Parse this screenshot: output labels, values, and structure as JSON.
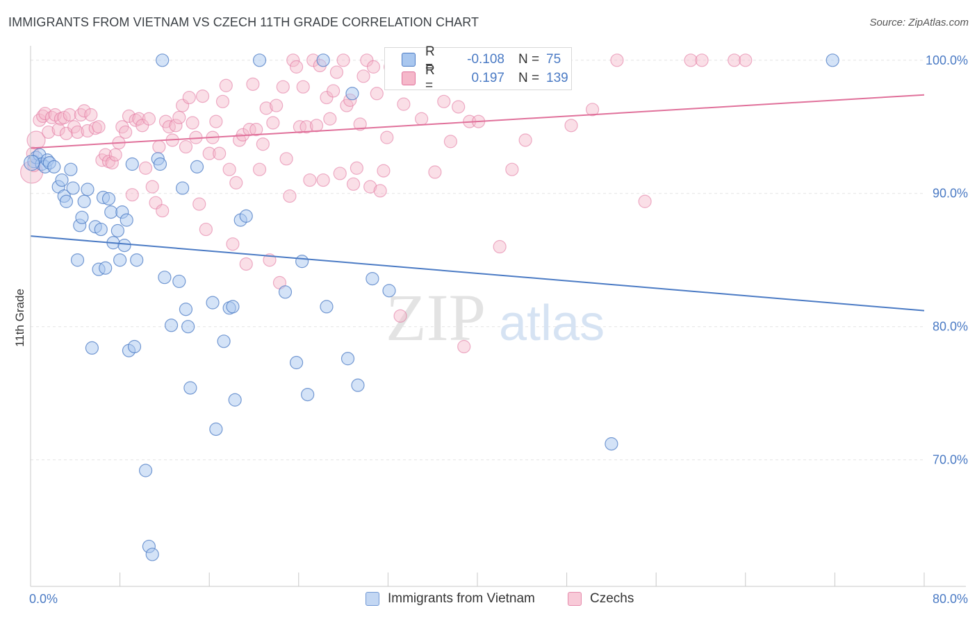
{
  "title": "IMMIGRANTS FROM VIETNAM VS CZECH 11TH GRADE CORRELATION CHART",
  "source": "Source: ZipAtlas.com",
  "watermark": {
    "zip": "ZIP",
    "atlas": "atlas"
  },
  "legend": {
    "r_label": "R =",
    "n_label": "N =",
    "series": [
      {
        "r": "-0.108",
        "n": "75"
      },
      {
        "r": "0.197",
        "n": "139"
      }
    ]
  },
  "bottom_legend": [
    "Immigrants from Vietnam",
    "Czechs"
  ],
  "chart_data": {
    "type": "scatter",
    "ylabel": "11th Grade",
    "x_tick_labels": [
      "0.0%",
      "80.0%"
    ],
    "y_tick_labels": [
      "100.0%",
      "90.0%",
      "80.0%",
      "70.0%"
    ],
    "y_ticks": [
      100,
      90,
      80,
      70
    ],
    "xlim": [
      0,
      80
    ],
    "ylim": [
      60.5,
      101.5
    ],
    "colors": {
      "blue": "#4a7ac4",
      "pink": "#e0709a",
      "blue_fill": "#a9c7ef",
      "pink_fill": "#f5b8ca"
    },
    "series": [
      {
        "name": "Immigrants from Vietnam",
        "color": "#4a7ac4",
        "trend": {
          "x": [
            0,
            80
          ],
          "y": [
            86.8,
            81.2
          ]
        },
        "points": [
          [
            0.3,
            92.4
          ],
          [
            0.5,
            92.7
          ],
          [
            0.8,
            92.9
          ],
          [
            1.0,
            92.2
          ],
          [
            1.3,
            92.0
          ],
          [
            1.5,
            92.5
          ],
          [
            1.7,
            92.3
          ],
          [
            2.1,
            92.0
          ],
          [
            2.5,
            90.5
          ],
          [
            2.8,
            91.0
          ],
          [
            3.0,
            89.8
          ],
          [
            3.2,
            89.4
          ],
          [
            3.6,
            91.8
          ],
          [
            3.8,
            90.4
          ],
          [
            4.2,
            85.0
          ],
          [
            4.4,
            87.6
          ],
          [
            4.6,
            88.2
          ],
          [
            4.8,
            89.4
          ],
          [
            5.1,
            90.3
          ],
          [
            5.5,
            78.4
          ],
          [
            5.8,
            87.5
          ],
          [
            6.1,
            84.3
          ],
          [
            6.3,
            87.3
          ],
          [
            6.5,
            89.7
          ],
          [
            6.7,
            84.4
          ],
          [
            7.0,
            89.6
          ],
          [
            7.2,
            88.6
          ],
          [
            7.4,
            86.3
          ],
          [
            7.8,
            87.2
          ],
          [
            8.0,
            85.0
          ],
          [
            8.2,
            88.6
          ],
          [
            8.4,
            86.1
          ],
          [
            8.6,
            88.0
          ],
          [
            8.8,
            78.2
          ],
          [
            9.1,
            92.2
          ],
          [
            9.3,
            78.5
          ],
          [
            9.5,
            85.0
          ],
          [
            10.3,
            69.2
          ],
          [
            10.6,
            63.5
          ],
          [
            10.9,
            62.9
          ],
          [
            11.4,
            92.6
          ],
          [
            11.6,
            92.2
          ],
          [
            11.8,
            100.0
          ],
          [
            12.0,
            83.7
          ],
          [
            12.6,
            80.1
          ],
          [
            13.3,
            83.4
          ],
          [
            13.6,
            90.4
          ],
          [
            13.9,
            81.3
          ],
          [
            14.1,
            80.0
          ],
          [
            14.3,
            75.4
          ],
          [
            14.9,
            92.0
          ],
          [
            16.3,
            81.8
          ],
          [
            16.6,
            72.3
          ],
          [
            17.3,
            78.9
          ],
          [
            17.8,
            81.4
          ],
          [
            18.1,
            81.5
          ],
          [
            18.3,
            74.5
          ],
          [
            18.8,
            88.0
          ],
          [
            19.3,
            88.3
          ],
          [
            20.5,
            100.0
          ],
          [
            22.8,
            82.6
          ],
          [
            23.8,
            77.3
          ],
          [
            24.3,
            84.9
          ],
          [
            24.8,
            74.9
          ],
          [
            26.2,
            100.0
          ],
          [
            26.5,
            81.5
          ],
          [
            28.4,
            77.6
          ],
          [
            28.8,
            97.5
          ],
          [
            29.3,
            75.6
          ],
          [
            30.6,
            83.6
          ],
          [
            32.1,
            82.7
          ],
          [
            43.6,
            100.0
          ],
          [
            52.0,
            71.2
          ],
          [
            71.8,
            100.0
          ],
          [
            0.1,
            92.3
          ]
        ]
      },
      {
        "name": "Czechs",
        "color": "#e0709a",
        "trend": {
          "x": [
            0,
            80
          ],
          "y": [
            93.4,
            97.4
          ]
        },
        "points": [
          [
            0.1,
            91.6
          ],
          [
            0.3,
            92.1
          ],
          [
            0.5,
            94.0
          ],
          [
            0.8,
            95.5
          ],
          [
            1.1,
            95.8
          ],
          [
            1.3,
            96.0
          ],
          [
            1.6,
            94.6
          ],
          [
            1.9,
            95.7
          ],
          [
            2.2,
            95.9
          ],
          [
            2.5,
            94.8
          ],
          [
            2.7,
            95.6
          ],
          [
            3.0,
            95.7
          ],
          [
            3.2,
            94.5
          ],
          [
            3.5,
            95.9
          ],
          [
            3.9,
            95.0
          ],
          [
            4.2,
            94.6
          ],
          [
            4.5,
            95.9
          ],
          [
            4.8,
            96.2
          ],
          [
            5.1,
            94.7
          ],
          [
            5.4,
            95.9
          ],
          [
            5.8,
            94.9
          ],
          [
            6.1,
            95.0
          ],
          [
            6.4,
            92.5
          ],
          [
            6.7,
            92.9
          ],
          [
            7.0,
            92.4
          ],
          [
            7.3,
            92.3
          ],
          [
            7.6,
            92.9
          ],
          [
            7.9,
            93.8
          ],
          [
            8.2,
            95.0
          ],
          [
            8.5,
            94.6
          ],
          [
            8.8,
            95.8
          ],
          [
            9.1,
            89.9
          ],
          [
            9.4,
            95.5
          ],
          [
            9.7,
            95.6
          ],
          [
            10.0,
            95.1
          ],
          [
            10.3,
            91.9
          ],
          [
            10.6,
            95.6
          ],
          [
            10.9,
            90.5
          ],
          [
            11.2,
            89.3
          ],
          [
            11.5,
            93.5
          ],
          [
            11.8,
            88.7
          ],
          [
            12.1,
            95.4
          ],
          [
            12.4,
            95.0
          ],
          [
            12.7,
            94.0
          ],
          [
            13.0,
            95.1
          ],
          [
            13.3,
            95.7
          ],
          [
            13.6,
            96.6
          ],
          [
            13.9,
            93.5
          ],
          [
            14.2,
            97.2
          ],
          [
            14.5,
            95.3
          ],
          [
            14.8,
            94.2
          ],
          [
            15.1,
            89.2
          ],
          [
            15.4,
            97.3
          ],
          [
            15.7,
            87.3
          ],
          [
            16.0,
            93.0
          ],
          [
            16.3,
            94.2
          ],
          [
            16.6,
            95.4
          ],
          [
            16.9,
            93.0
          ],
          [
            17.2,
            96.9
          ],
          [
            17.5,
            98.1
          ],
          [
            17.8,
            91.8
          ],
          [
            18.1,
            86.2
          ],
          [
            18.4,
            90.8
          ],
          [
            18.7,
            94.0
          ],
          [
            19.0,
            94.4
          ],
          [
            19.3,
            84.7
          ],
          [
            19.6,
            94.8
          ],
          [
            19.9,
            98.2
          ],
          [
            20.2,
            94.8
          ],
          [
            20.5,
            91.8
          ],
          [
            20.8,
            93.7
          ],
          [
            21.1,
            96.4
          ],
          [
            21.4,
            85.0
          ],
          [
            21.7,
            95.3
          ],
          [
            22.0,
            96.6
          ],
          [
            22.3,
            83.3
          ],
          [
            22.6,
            98.0
          ],
          [
            22.9,
            92.6
          ],
          [
            23.2,
            89.8
          ],
          [
            23.5,
            100.0
          ],
          [
            23.8,
            99.5
          ],
          [
            24.1,
            95.0
          ],
          [
            24.4,
            98.0
          ],
          [
            24.7,
            95.0
          ],
          [
            25.0,
            91.0
          ],
          [
            25.3,
            100.0
          ],
          [
            25.6,
            95.1
          ],
          [
            25.9,
            99.6
          ],
          [
            26.2,
            91.0
          ],
          [
            26.5,
            97.2
          ],
          [
            26.8,
            95.6
          ],
          [
            27.1,
            97.7
          ],
          [
            27.4,
            99.1
          ],
          [
            27.7,
            91.5
          ],
          [
            28.0,
            100.0
          ],
          [
            28.3,
            96.6
          ],
          [
            28.6,
            97.0
          ],
          [
            28.9,
            90.7
          ],
          [
            29.2,
            91.9
          ],
          [
            29.5,
            95.2
          ],
          [
            29.8,
            98.8
          ],
          [
            30.1,
            100.0
          ],
          [
            30.4,
            90.5
          ],
          [
            30.7,
            99.5
          ],
          [
            31.0,
            97.5
          ],
          [
            31.3,
            90.2
          ],
          [
            31.6,
            91.7
          ],
          [
            31.9,
            94.2
          ],
          [
            32.2,
            99.5
          ],
          [
            32.5,
            100.0
          ],
          [
            32.8,
            100.0
          ],
          [
            33.1,
            80.8
          ],
          [
            33.4,
            96.7
          ],
          [
            35.0,
            95.6
          ],
          [
            35.5,
            100.0
          ],
          [
            36.2,
            91.6
          ],
          [
            37.0,
            96.9
          ],
          [
            37.6,
            93.9
          ],
          [
            38.3,
            96.5
          ],
          [
            38.8,
            78.5
          ],
          [
            39.3,
            95.4
          ],
          [
            40.1,
            95.4
          ],
          [
            41.0,
            100.0
          ],
          [
            42.0,
            86.0
          ],
          [
            42.6,
            99.2
          ],
          [
            43.1,
            91.8
          ],
          [
            44.3,
            94.0
          ],
          [
            45.0,
            99.3
          ],
          [
            46.0,
            100.0
          ],
          [
            48.4,
            95.1
          ],
          [
            50.3,
            96.3
          ],
          [
            52.5,
            100.0
          ],
          [
            55.0,
            89.4
          ],
          [
            59.1,
            100.0
          ],
          [
            60.1,
            100.0
          ],
          [
            63.0,
            100.0
          ],
          [
            64.0,
            100.0
          ],
          [
            33.7,
            100.0
          ],
          [
            0.2,
            93.0
          ]
        ]
      }
    ]
  }
}
